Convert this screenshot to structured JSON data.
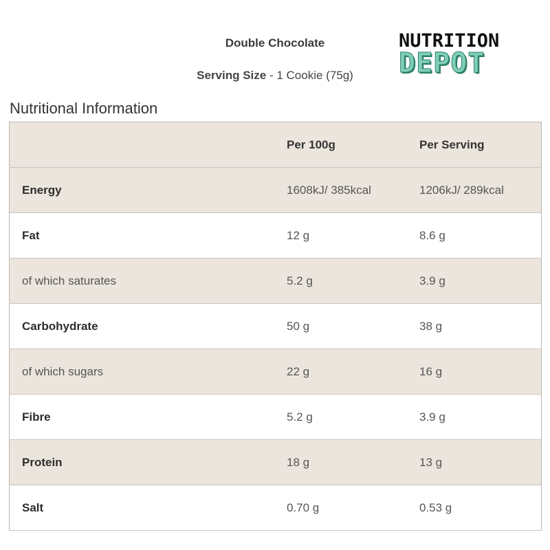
{
  "product": {
    "name": "Double Chocolate",
    "serving_label": "Serving Size",
    "serving_value": " - 1 Cookie (75g)"
  },
  "logo": {
    "line1": "NUTRITION",
    "line2": "DEPOT",
    "colors": {
      "line1": "#111111",
      "line2": "#7fcfb8",
      "outline": "#2f7f6a"
    }
  },
  "section_title": "Nutritional Information",
  "table": {
    "headers": [
      "",
      "Per 100g",
      "Per Serving"
    ],
    "rows": [
      {
        "label": "Energy",
        "per100": "1608kJ/ 385kcal",
        "serving": "1206kJ/ 289kcal",
        "style": "bold"
      },
      {
        "label": "Fat",
        "per100": "12 g",
        "serving": "8.6 g",
        "style": "bold"
      },
      {
        "label": "of which saturates",
        "per100": "5.2 g",
        "serving": "3.9 g",
        "style": "sub"
      },
      {
        "label": "Carbohydrate",
        "per100": "50 g",
        "serving": "38 g",
        "style": "bold"
      },
      {
        "label": "of which sugars",
        "per100": "22 g",
        "serving": "16 g",
        "style": "sub"
      },
      {
        "label": "Fibre",
        "per100": "5.2 g",
        "serving": "3.9 g",
        "style": "bold"
      },
      {
        "label": "Protein",
        "per100": "18 g",
        "serving": "13 g",
        "style": "bold"
      },
      {
        "label": "Salt",
        "per100": "0.70 g",
        "serving": "0.53 g",
        "style": "bold"
      }
    ]
  },
  "colors": {
    "shaded_row": "#ebe5dd",
    "border": "#b9b4ad",
    "text": "#333333"
  }
}
